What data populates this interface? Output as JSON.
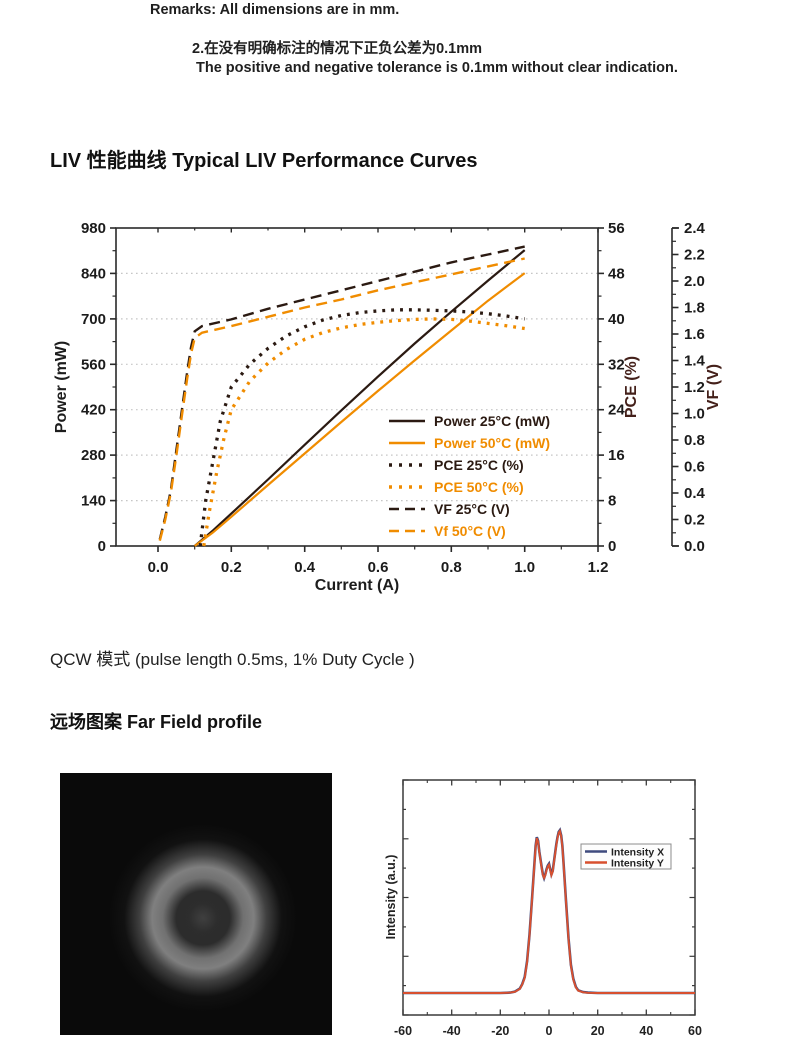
{
  "page": {
    "remarks_line1": "Remarks: All dimensions are in mm.",
    "remarks_line2": "2.在没有明确标注的情况下正负公差为0.1mm",
    "remarks_line3": "The positive and negative tolerance is 0.1mm without clear indication.",
    "liv_title": "LIV 性能曲线 Typical LIV Performance Curves",
    "qcw_note": "QCW 模式 (pulse length 0.5ms, 1% Duty Cycle )",
    "farfield_title": "远场图案 Far Field profile"
  },
  "colors": {
    "dark_series": "#2b1a12",
    "orange_series": "#f08c00",
    "axis": "#2a2a2a",
    "grid": "#c6c6c6",
    "axis_title_side": "#44201a",
    "tick_text": "#1b1b1b",
    "intensity_x": "#3f4b7e",
    "intensity_y": "#d8502f"
  },
  "chart_data": [
    {
      "type": "line",
      "title": "Typical LIV Performance Curves",
      "xlabel": "Current (A)",
      "ylabel_left": "Power (mW)",
      "ylabel_right": "PCE (%)",
      "ylabel_far_right": "VF (V)",
      "xlim": [
        0.0,
        1.2
      ],
      "xticks": [
        0.0,
        0.2,
        0.4,
        0.6,
        0.8,
        1.0,
        1.2
      ],
      "yticks_power": [
        0,
        140,
        280,
        420,
        560,
        700,
        840,
        980
      ],
      "ylim_power": [
        0,
        980
      ],
      "yticks_pce": [
        0,
        8,
        16,
        24,
        32,
        40,
        48,
        56
      ],
      "ylim_pce": [
        0,
        56
      ],
      "yticks_vf": [
        0.0,
        0.2,
        0.4,
        0.6,
        0.8,
        1.0,
        1.2,
        1.4,
        1.6,
        1.8,
        2.0,
        2.2,
        2.4
      ],
      "ylim_vf": [
        0.0,
        2.4
      ],
      "grid": "horizontal dotted",
      "legend_position": "inside lower right",
      "series": [
        {
          "name": "Power 25°C (mW)",
          "axis": "power",
          "style": "solid",
          "color_key": "dark_series",
          "points": [
            [
              0.1,
              0
            ],
            [
              0.15,
              48
            ],
            [
              0.2,
              100
            ],
            [
              0.3,
              205
            ],
            [
              0.4,
              312
            ],
            [
              0.5,
              418
            ],
            [
              0.6,
              522
            ],
            [
              0.7,
              624
            ],
            [
              0.8,
              722
            ],
            [
              0.9,
              818
            ],
            [
              1.0,
              912
            ]
          ]
        },
        {
          "name": "Power 50°C (mW)",
          "axis": "power",
          "style": "solid",
          "color_key": "orange_series",
          "points": [
            [
              0.1,
              0
            ],
            [
              0.15,
              42
            ],
            [
              0.2,
              90
            ],
            [
              0.3,
              188
            ],
            [
              0.4,
              285
            ],
            [
              0.5,
              382
            ],
            [
              0.6,
              478
            ],
            [
              0.7,
              572
            ],
            [
              0.8,
              664
            ],
            [
              0.9,
              756
            ],
            [
              1.0,
              841
            ]
          ]
        },
        {
          "name": "PCE 25°C (%)",
          "axis": "pce",
          "style": "dotted",
          "color_key": "dark_series",
          "points": [
            [
              0.115,
              0
            ],
            [
              0.13,
              8
            ],
            [
              0.15,
              15
            ],
            [
              0.17,
              22
            ],
            [
              0.2,
              28
            ],
            [
              0.25,
              32
            ],
            [
              0.3,
              34.8
            ],
            [
              0.35,
              37
            ],
            [
              0.4,
              38.6
            ],
            [
              0.45,
              39.8
            ],
            [
              0.5,
              40.6
            ],
            [
              0.55,
              41.1
            ],
            [
              0.6,
              41.4
            ],
            [
              0.65,
              41.6
            ],
            [
              0.7,
              41.6
            ],
            [
              0.75,
              41.5
            ],
            [
              0.8,
              41.4
            ],
            [
              0.85,
              41.2
            ],
            [
              0.9,
              40.9
            ],
            [
              0.95,
              40.5
            ],
            [
              1.0,
              40.0
            ]
          ]
        },
        {
          "name": "PCE 50°C (%)",
          "axis": "pce",
          "style": "dotted",
          "color_key": "orange_series",
          "points": [
            [
              0.125,
              0
            ],
            [
              0.14,
              6
            ],
            [
              0.16,
              13
            ],
            [
              0.18,
              19
            ],
            [
              0.2,
              24
            ],
            [
              0.25,
              29
            ],
            [
              0.3,
              32.2
            ],
            [
              0.35,
              34.6
            ],
            [
              0.4,
              36.4
            ],
            [
              0.45,
              37.6
            ],
            [
              0.5,
              38.4
            ],
            [
              0.55,
              39.0
            ],
            [
              0.6,
              39.4
            ],
            [
              0.65,
              39.7
            ],
            [
              0.7,
              39.9
            ],
            [
              0.75,
              40.0
            ],
            [
              0.8,
              39.9
            ],
            [
              0.85,
              39.6
            ],
            [
              0.9,
              39.2
            ],
            [
              0.95,
              38.8
            ],
            [
              1.0,
              38.3
            ]
          ]
        },
        {
          "name": "VF 25°C (V)",
          "axis": "vf",
          "style": "dashed",
          "color_key": "dark_series",
          "points": [
            [
              0.005,
              0.05
            ],
            [
              0.02,
              0.22
            ],
            [
              0.035,
              0.42
            ],
            [
              0.05,
              0.72
            ],
            [
              0.065,
              1.02
            ],
            [
              0.08,
              1.32
            ],
            [
              0.09,
              1.5
            ],
            [
              0.1,
              1.62
            ],
            [
              0.12,
              1.66
            ],
            [
              0.2,
              1.71
            ],
            [
              0.3,
              1.79
            ],
            [
              0.4,
              1.86
            ],
            [
              0.5,
              1.93
            ],
            [
              0.6,
              2.0
            ],
            [
              0.7,
              2.07
            ],
            [
              0.8,
              2.14
            ],
            [
              0.9,
              2.2
            ],
            [
              1.0,
              2.26
            ]
          ]
        },
        {
          "name": "Vf 50°C (V)",
          "axis": "vf",
          "style": "dashed",
          "color_key": "orange_series",
          "points": [
            [
              0.005,
              0.04
            ],
            [
              0.02,
              0.2
            ],
            [
              0.035,
              0.4
            ],
            [
              0.05,
              0.68
            ],
            [
              0.065,
              0.98
            ],
            [
              0.08,
              1.27
            ],
            [
              0.09,
              1.45
            ],
            [
              0.1,
              1.57
            ],
            [
              0.12,
              1.61
            ],
            [
              0.2,
              1.66
            ],
            [
              0.3,
              1.73
            ],
            [
              0.4,
              1.8
            ],
            [
              0.5,
              1.86
            ],
            [
              0.6,
              1.93
            ],
            [
              0.7,
              1.99
            ],
            [
              0.8,
              2.05
            ],
            [
              0.9,
              2.11
            ],
            [
              1.0,
              2.17
            ]
          ]
        }
      ]
    },
    {
      "type": "line",
      "title": "Far Field profile",
      "xlabel": "",
      "ylabel": "Intensity (a.u.)",
      "xlim": [
        -60,
        60
      ],
      "xticks": [
        -60,
        -40,
        -20,
        0,
        20,
        40,
        60
      ],
      "yticks_labeled": false,
      "legend_position": "inside upper right",
      "series": [
        {
          "name": "Intensity X",
          "color_key": "intensity_x",
          "points": [
            [
              -60,
              0.05
            ],
            [
              -30,
              0.05
            ],
            [
              -20,
              0.05
            ],
            [
              -16,
              0.052
            ],
            [
              -14,
              0.058
            ],
            [
              -12,
              0.075
            ],
            [
              -11,
              0.1
            ],
            [
              -10,
              0.14
            ],
            [
              -9,
              0.23
            ],
            [
              -8,
              0.38
            ],
            [
              -7,
              0.58
            ],
            [
              -6,
              0.78
            ],
            [
              -5.5,
              0.88
            ],
            [
              -5,
              0.93
            ],
            [
              -4.5,
              0.91
            ],
            [
              -4,
              0.85
            ],
            [
              -3,
              0.76
            ],
            [
              -2.5,
              0.72
            ],
            [
              -2,
              0.7
            ],
            [
              -1.5,
              0.72
            ],
            [
              -1,
              0.75
            ],
            [
              -0.5,
              0.77
            ],
            [
              0,
              0.78
            ],
            [
              0.5,
              0.75
            ],
            [
              1,
              0.72
            ],
            [
              1.5,
              0.74
            ],
            [
              2,
              0.79
            ],
            [
              2.5,
              0.84
            ],
            [
              3,
              0.89
            ],
            [
              3.5,
              0.93
            ],
            [
              4,
              0.96
            ],
            [
              4.5,
              0.97
            ],
            [
              5,
              0.94
            ],
            [
              5.5,
              0.88
            ],
            [
              6,
              0.78
            ],
            [
              7,
              0.57
            ],
            [
              8,
              0.36
            ],
            [
              9,
              0.21
            ],
            [
              10,
              0.13
            ],
            [
              11,
              0.085
            ],
            [
              12,
              0.065
            ],
            [
              14,
              0.055
            ],
            [
              16,
              0.052
            ],
            [
              20,
              0.05
            ],
            [
              30,
              0.05
            ],
            [
              60,
              0.05
            ]
          ]
        },
        {
          "name": "Intensity Y",
          "color_key": "intensity_y",
          "points": [
            [
              -60,
              0.05
            ],
            [
              -30,
              0.05
            ],
            [
              -20,
              0.05
            ],
            [
              -16,
              0.052
            ],
            [
              -14,
              0.057
            ],
            [
              -12,
              0.073
            ],
            [
              -11,
              0.098
            ],
            [
              -10,
              0.135
            ],
            [
              -9,
              0.225
            ],
            [
              -8,
              0.375
            ],
            [
              -7,
              0.575
            ],
            [
              -6,
              0.775
            ],
            [
              -5.5,
              0.875
            ],
            [
              -5,
              0.925
            ],
            [
              -4.5,
              0.905
            ],
            [
              -4,
              0.845
            ],
            [
              -3,
              0.755
            ],
            [
              -2.5,
              0.715
            ],
            [
              -2,
              0.7
            ],
            [
              -1.5,
              0.715
            ],
            [
              -1,
              0.745
            ],
            [
              -0.5,
              0.765
            ],
            [
              0,
              0.775
            ],
            [
              0.5,
              0.745
            ],
            [
              1,
              0.715
            ],
            [
              1.5,
              0.735
            ],
            [
              2,
              0.785
            ],
            [
              2.5,
              0.835
            ],
            [
              3,
              0.885
            ],
            [
              3.5,
              0.925
            ],
            [
              4,
              0.955
            ],
            [
              4.5,
              0.965
            ],
            [
              5,
              0.935
            ],
            [
              5.5,
              0.875
            ],
            [
              6,
              0.775
            ],
            [
              7,
              0.565
            ],
            [
              8,
              0.355
            ],
            [
              9,
              0.205
            ],
            [
              10,
              0.125
            ],
            [
              11,
              0.082
            ],
            [
              12,
              0.063
            ],
            [
              14,
              0.054
            ],
            [
              16,
              0.051
            ],
            [
              20,
              0.05
            ],
            [
              30,
              0.05
            ],
            [
              60,
              0.05
            ]
          ]
        }
      ]
    }
  ]
}
